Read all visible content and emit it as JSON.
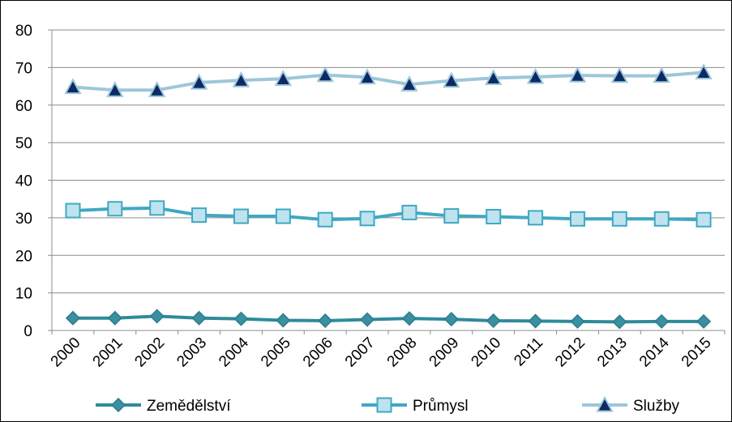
{
  "chart_data": {
    "type": "line",
    "title": "",
    "xlabel": "",
    "ylabel": "",
    "ylim": [
      0,
      80
    ],
    "yticks": [
      "0",
      "10",
      "20",
      "30",
      "40",
      "50",
      "60",
      "70",
      "80"
    ],
    "categories": [
      "2000",
      "2001",
      "2002",
      "2003",
      "2004",
      "2005",
      "2006",
      "2007",
      "2008",
      "2009",
      "2010",
      "2011",
      "2012",
      "2013",
      "2014",
      "2015"
    ],
    "grid": true,
    "legend_position": "bottom",
    "series": [
      {
        "name": "Zemědělství",
        "marker": "diamond",
        "line_color": "#2E8B9A",
        "marker_fill": "#3A8FA0",
        "marker_stroke": "#2A7E8E",
        "values": [
          3.3,
          3.3,
          3.8,
          3.3,
          3.1,
          2.7,
          2.6,
          2.9,
          3.2,
          3.0,
          2.6,
          2.5,
          2.4,
          2.3,
          2.4,
          2.4
        ]
      },
      {
        "name": "Průmysl",
        "marker": "square",
        "line_color": "#3FA8C3",
        "marker_fill": "#BFE3EE",
        "marker_stroke": "#3FA8C3",
        "values": [
          31.9,
          32.4,
          32.6,
          30.7,
          30.4,
          30.4,
          29.5,
          29.8,
          31.4,
          30.5,
          30.3,
          30.0,
          29.7,
          29.7,
          29.7,
          29.5
        ]
      },
      {
        "name": "Služby",
        "marker": "triangle",
        "line_color": "#9CC7DA",
        "marker_fill": "#0E2A66",
        "marker_stroke": "#9CC7DA",
        "values": [
          64.8,
          64.0,
          64.0,
          66.0,
          66.6,
          67.0,
          68.0,
          67.4,
          65.5,
          66.5,
          67.2,
          67.5,
          67.9,
          67.8,
          67.8,
          68.7
        ]
      }
    ]
  }
}
